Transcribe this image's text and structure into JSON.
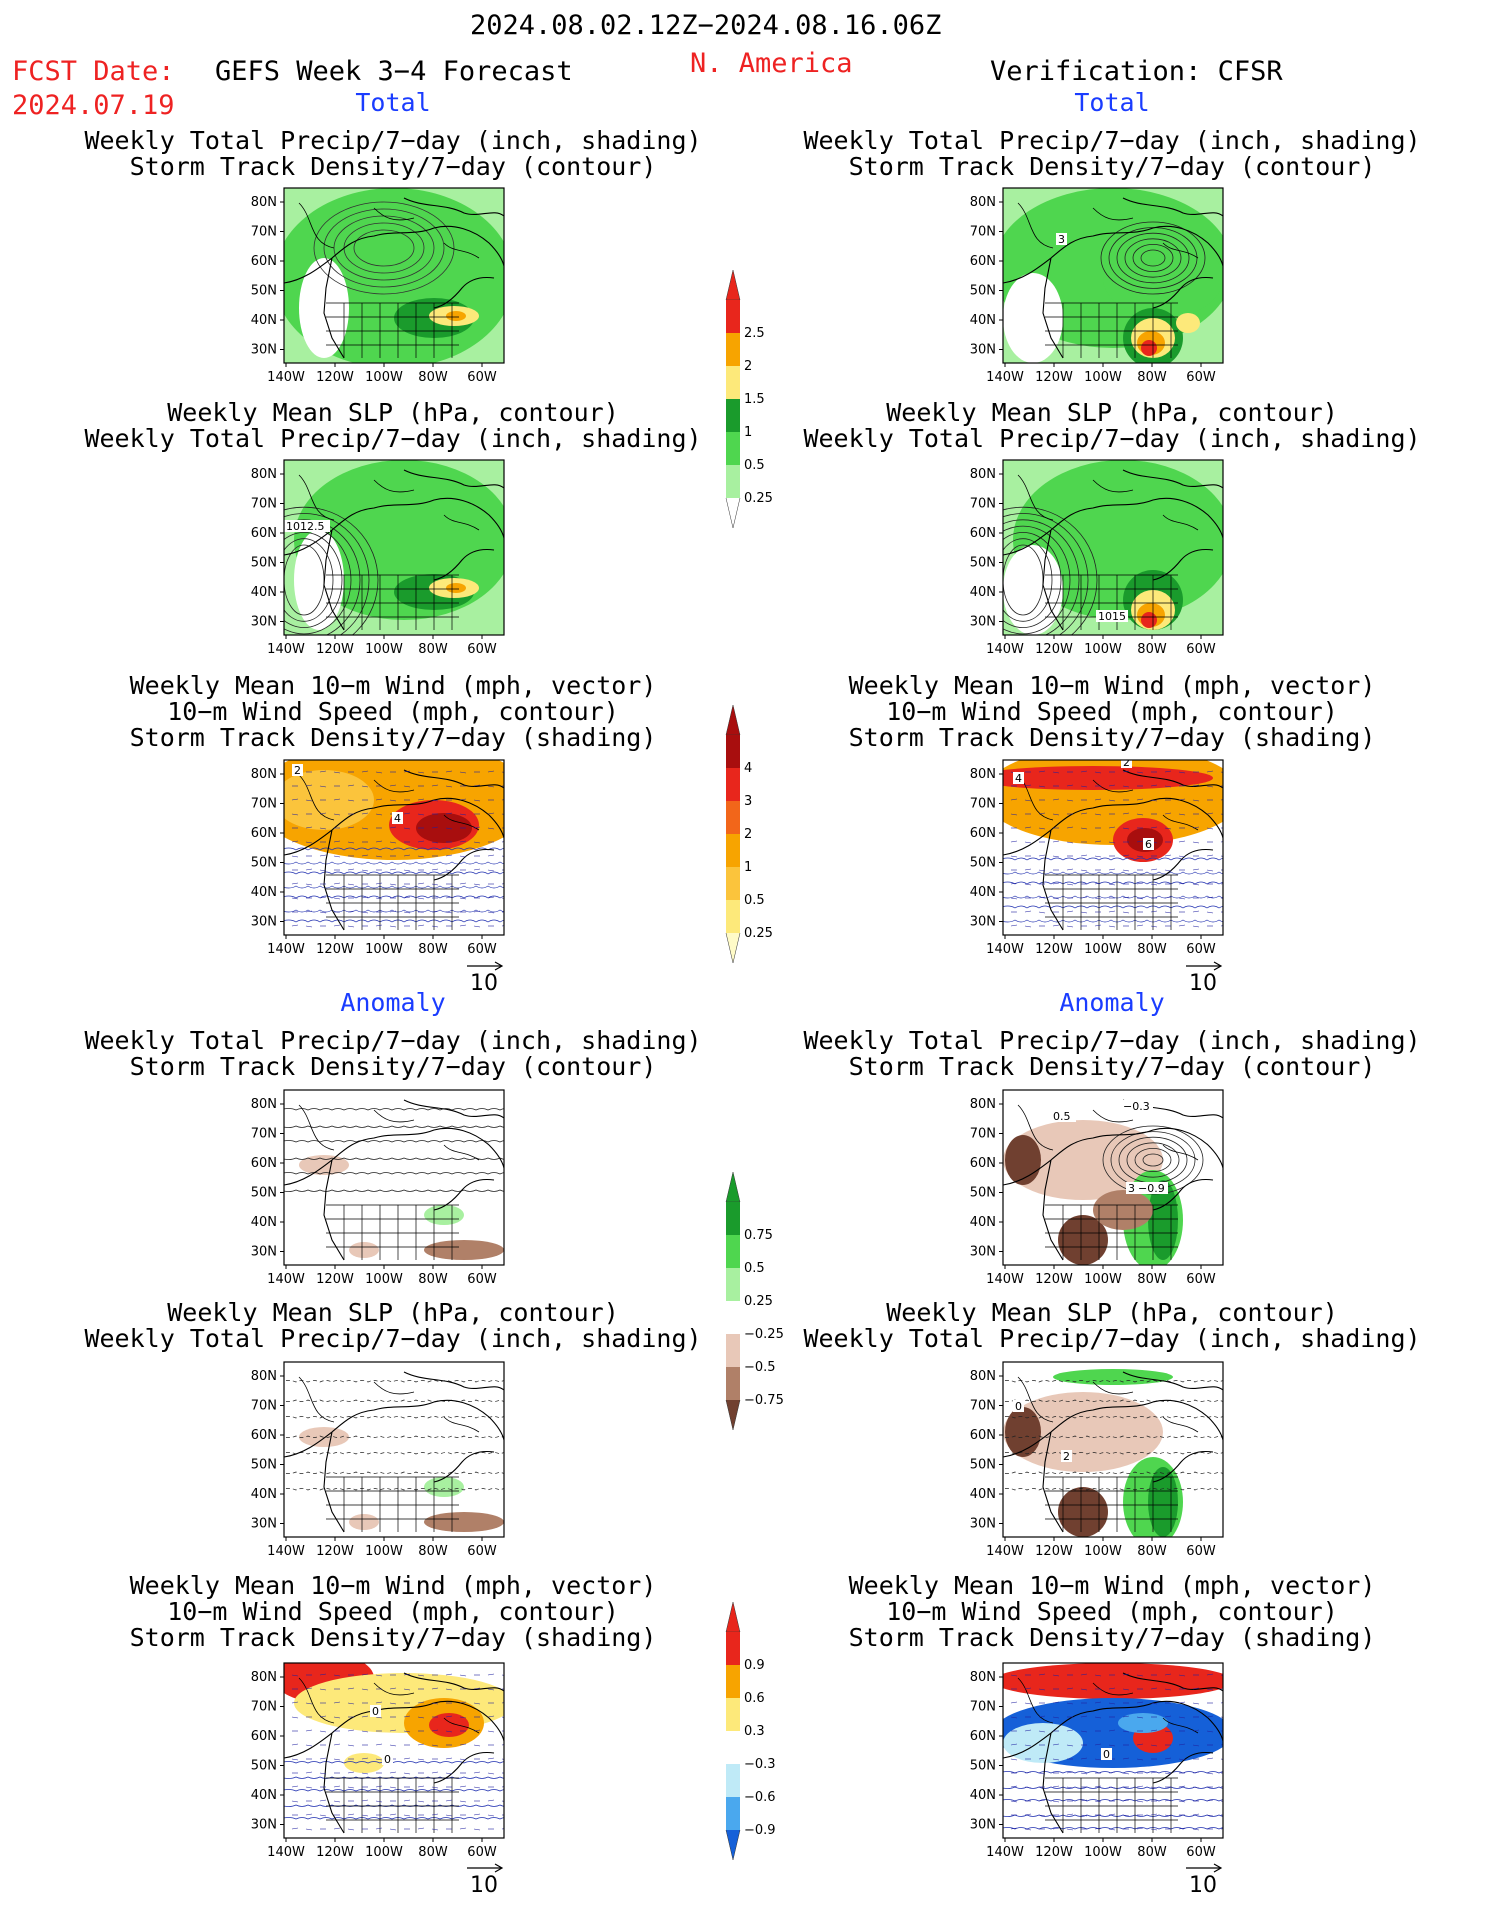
{
  "header": {
    "date_range": "2024.08.02.12Z−2024.08.16.06Z",
    "fcst_label": "FCST Date:",
    "fcst_date": "2024.07.19",
    "left_title": "GEFS Week 3−4 Forecast",
    "region": "N. America",
    "right_title": "Verification: CFSR"
  },
  "sections": {
    "total": "Total",
    "anomaly": "Anomaly"
  },
  "panel_titles": {
    "precip_std": [
      "Weekly Total Precip/7−day (inch, shading)",
      "Storm Track Density/7−day (contour)"
    ],
    "slp_precip": [
      "Weekly Mean SLP (hPa, contour)",
      "Weekly Total Precip/7−day (inch, shading)"
    ],
    "wind_std": [
      "Weekly Mean 10−m Wind (mph, vector)",
      "10−m Wind Speed (mph, contour)",
      "Storm Track Density/7−day (shading)"
    ]
  },
  "lat_labels": [
    "80N",
    "70N",
    "60N",
    "50N",
    "40N",
    "30N"
  ],
  "lon_labels": [
    "140W",
    "120W",
    "100W",
    "80W",
    "60W"
  ],
  "vector_ref": "10",
  "contour_labels": {
    "slp_fcst": "1012.5",
    "slp_obs": "1015",
    "wind_fcst": [
      "2",
      "4"
    ],
    "wind_obs": [
      "4",
      "6",
      "2"
    ],
    "std_anom_obs": [
      "0.5",
      "−0.3",
      "−0.9",
      "3"
    ],
    "slp_anom_obs": [
      "0",
      "2"
    ],
    "wind_anom_fcst": [
      "0",
      "0"
    ],
    "wind_anom_obs": [
      "0"
    ]
  },
  "colorbars": {
    "precip_total": {
      "labels": [
        "2.5",
        "2",
        "1.5",
        "1",
        "0.5",
        "0.25"
      ],
      "colors": [
        "#e8261c",
        "#f7a400",
        "#fde97a",
        "#1a9b2c",
        "#4fd64f",
        "#a8f0a0"
      ]
    },
    "std_total": {
      "labels": [
        "4",
        "3",
        "2",
        "1",
        "0.5",
        "0.25"
      ],
      "colors": [
        "#a80e0e",
        "#e8261c",
        "#f2661a",
        "#f7a400",
        "#fbc43c",
        "#fde97a",
        "#fffbc8"
      ]
    },
    "precip_anom": {
      "labels": [
        "0.75",
        "0.5",
        "0.25",
        "−0.25",
        "−0.5",
        "−0.75"
      ],
      "colors": [
        "#1a9b2c",
        "#4fd64f",
        "#a8f0a0",
        "#ffffff",
        "#e8c8b8",
        "#b08068",
        "#704030"
      ]
    },
    "std_anom": {
      "labels": [
        "0.9",
        "0.6",
        "0.3",
        "−0.3",
        "−0.6",
        "−0.9"
      ],
      "colors": [
        "#e8261c",
        "#f7a400",
        "#fde97a",
        "#ffffff",
        "#bfeaf7",
        "#4aa8ee",
        "#1560d8"
      ]
    }
  }
}
